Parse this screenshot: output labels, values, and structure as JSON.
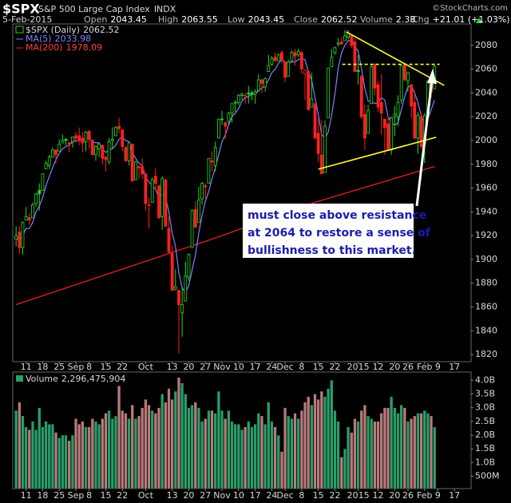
{
  "header": {
    "symbol": "$SPX",
    "description": "S&P 500 Large Cap Index",
    "exchange": "INDX",
    "credit": "©StockCharts.com",
    "date": "5-Feb-2015",
    "quote": [
      {
        "label": "Open",
        "value": "2043.45"
      },
      {
        "label": "High",
        "value": "2063.55"
      },
      {
        "label": "Low",
        "value": "2043.45"
      },
      {
        "label": "Close",
        "value": "2062.52"
      },
      {
        "label": "Volume",
        "value": "2.3B"
      },
      {
        "label": "Chg",
        "value": "+21.01 (+1.03%)"
      }
    ]
  },
  "chart_data": [
    {
      "type": "candlestick",
      "series": [
        {
          "name": "$SPX (Daily)",
          "up_color": "#22dd22",
          "down_color": "#ff2020",
          "open": [
            1917,
            1923,
            1910,
            1933,
            1935,
            1935,
            1947,
            1958,
            1958,
            1976,
            1979,
            1986,
            1992,
            1991,
            1998,
            2001,
            1998,
            1999,
            2004,
            2004,
            2002,
            1999,
            2008,
            2000,
            1988,
            1993,
            1996,
            1986,
            1982,
            2000,
            2004,
            2012,
            2009,
            1994,
            1983,
            1997,
            1967,
            1978,
            1978,
            1972,
            1946,
            1948,
            1970,
            1962,
            1936,
            1967,
            1926,
            1905,
            1875,
            1874,
            1855,
            1865,
            1885,
            1910,
            1942,
            1931,
            1951,
            1962,
            1964,
            1983,
            1979,
            2002,
            2018,
            2015,
            2016,
            2023,
            2032,
            2032,
            2038,
            2037,
            2040,
            2040,
            2039,
            2042,
            2051,
            2045,
            2058,
            2064,
            2070,
            2067,
            2074,
            2066,
            2054,
            2067,
            2074,
            2072,
            2074,
            2056,
            2058,
            2028,
            2031,
            2006,
            1988,
            1973,
            2019,
            2062,
            2074,
            2081,
            2083,
            2084,
            2087,
            2088,
            2083,
            2059,
            2054,
            2022,
            2006,
            2031,
            2064,
            2047,
            2032,
            2018,
            2014,
            1992,
            2020,
            2020,
            2034,
            2063,
            2050,
            2047,
            2032,
            2002,
            2020,
            1997,
            2022,
            2048,
            2043.45
          ],
          "high": [
            1928,
            1928,
            1932,
            1944,
            1939,
            1948,
            1956,
            1964,
            1972,
            1983,
            1988,
            1994,
            1993,
            2001,
            2005,
            2002,
            1999,
            2003,
            2007,
            2011,
            2007,
            2008,
            2008,
            2001,
            1996,
            1998,
            1996,
            1987,
            2002,
            2011,
            2012,
            2019,
            2009,
            1995,
            1999,
            1997,
            1983,
            1979,
            1985,
            1972,
            1952,
            1969,
            1977,
            1962,
            1970,
            1967,
            1936,
            1912,
            1892,
            1874,
            1876,
            1898,
            1905,
            1942,
            1949,
            1961,
            1965,
            1964,
            1985,
            1991,
            1999,
            2018,
            2025,
            2016,
            2024,
            2031,
            2034,
            2039,
            2040,
            2040,
            2046,
            2042,
            2043,
            2056,
            2052,
            2053,
            2072,
            2071,
            2074,
            2073,
            2076,
            2066,
            2068,
            2076,
            2077,
            2077,
            2075,
            2060,
            2058,
            2057,
            2031,
            2018,
            2017,
            2017,
            2061,
            2077,
            2079,
            2086,
            2087,
            2093,
            2093,
            2089,
            2086,
            2072,
            2055,
            2030,
            2030,
            2064,
            2065,
            2050,
            2056,
            2018,
            2021,
            2020,
            2029,
            2038,
            2064,
            2065,
            2058,
            2047,
            2042,
            2024,
            2023,
            2023,
            2050,
            2055,
            2063.55
          ],
          "low": [
            1911,
            1905,
            1904,
            1933,
            1929,
            1935,
            1944,
            1941,
            1958,
            1976,
            1976,
            1986,
            1981,
            1991,
            1998,
            1996,
            1990,
            1994,
            1998,
            1996,
            1990,
            1991,
            1993,
            1988,
            1983,
            1986,
            1980,
            1974,
            1980,
            1993,
            2004,
            2006,
            1991,
            1982,
            1979,
            1965,
            1967,
            1968,
            1968,
            1941,
            1926,
            1948,
            1958,
            1934,
            1925,
            1927,
            1906,
            1874,
            1874,
            1821,
            1835,
            1865,
            1882,
            1910,
            1927,
            1931,
            1946,
            1951,
            1964,
            1974,
            1974,
            2002,
            2013,
            2001,
            2014,
            2015,
            2024,
            2030,
            2034,
            2031,
            2031,
            2034,
            2031,
            2041,
            2040,
            2041,
            2058,
            2063,
            2067,
            2067,
            2065,
            2049,
            2054,
            2066,
            2063,
            2070,
            2056,
            2034,
            2025,
            2028,
            2002,
            1982,
            1972,
            1973,
            2019,
            2062,
            2072,
            2079,
            2081,
            2084,
            2085,
            2078,
            2058,
            2047,
            2018,
            1992,
            2006,
            2031,
            2038,
            2024,
            2005,
            1988,
            1992,
            1988,
            2004,
            2012,
            2031,
            2050,
            2041,
            2019,
            2001,
            1989,
            1993,
            1981,
            2022,
            2036,
            2043.45
          ],
          "close": [
            1920,
            1910,
            1931,
            1936,
            1933,
            1946,
            1955,
            1955,
            1972,
            1981,
            1986,
            1992,
            1988,
            1997,
            2000,
            2000,
            1997,
            2003,
            2002,
            2000,
            1998,
            2007,
            2001,
            1988,
            1995,
            1997,
            1985,
            1984,
            1999,
            2001,
            2011,
            2010,
            1995,
            1983,
            1998,
            1966,
            1982,
            1977,
            1972,
            1947,
            1946,
            1967,
            1964,
            1935,
            1968,
            1928,
            1906,
            1874,
            1877,
            1862,
            1862,
            1886,
            1904,
            1941,
            1927,
            1950,
            1964,
            1961,
            1985,
            1982,
            1994,
            2018,
            2018,
            2012,
            2023,
            2031,
            2032,
            2038,
            2039,
            2038,
            2039,
            2039,
            2041,
            2051,
            2048,
            2052,
            2063,
            2069,
            2067,
            2072,
            2067,
            2053,
            2066,
            2074,
            2071,
            2075,
            2060,
            2059,
            2026,
            2035,
            2002,
            1989,
            1972,
            2012,
            2061,
            2070,
            2078,
            2082,
            2081,
            2088,
            2090,
            2080,
            2058,
            2058,
            2020,
            2002,
            2025,
            2062,
            2044,
            2028,
            2023,
            2011,
            1992,
            2019,
            2022,
            2032,
            2063,
            2051,
            2057,
            2029,
            2002,
            2021,
            1995,
            2021,
            2050,
            2041,
            2062.52
          ]
        }
      ],
      "overlays": [
        {
          "name": "MA(5)",
          "color": "#8080ff",
          "values": [
            1918,
            1917,
            1920,
            1926,
            1926,
            1931,
            1940,
            1945,
            1952,
            1962,
            1970,
            1977,
            1984,
            1989,
            1993,
            1995,
            1996,
            1999,
            2000,
            2000,
            2000,
            2002,
            2002,
            1999,
            1998,
            1998,
            1993,
            1990,
            1992,
            1993,
            1996,
            2001,
            2003,
            2000,
            1999,
            1990,
            1985,
            1981,
            1979,
            1969,
            1965,
            1962,
            1959,
            1952,
            1956,
            1952,
            1940,
            1922,
            1911,
            1889,
            1876,
            1872,
            1878,
            1891,
            1904,
            1922,
            1937,
            1949,
            1957,
            1968,
            1977,
            1988,
            1999,
            2005,
            2013,
            2020,
            2023,
            2027,
            2033,
            2036,
            2037,
            2039,
            2039,
            2042,
            2044,
            2046,
            2051,
            2057,
            2060,
            2065,
            2068,
            2066,
            2065,
            2066,
            2066,
            2068,
            2069,
            2068,
            2058,
            2051,
            2036,
            2022,
            2005,
            2002,
            2007,
            2021,
            2039,
            2061,
            2074,
            2080,
            2084,
            2084,
            2079,
            2075,
            2061,
            2044,
            2033,
            2033,
            2031,
            2032,
            2036,
            2034,
            2020,
            2015,
            2013,
            2015,
            2026,
            2037,
            2045,
            2046,
            2040,
            2032,
            2021,
            2014,
            2018,
            2026,
            2033.98
          ]
        },
        {
          "name": "MA(200)",
          "color": "#ff2020",
          "x": [
            0,
            30,
            60,
            90,
            126
          ],
          "values": [
            1862,
            1890,
            1918,
            1948,
            1978.09
          ]
        }
      ],
      "trendlines": [
        {
          "color": "#ffff33",
          "dashed": false,
          "x": [
            99.4,
            128.9
          ],
          "values": [
            2091.4,
            2046.4
          ]
        },
        {
          "color": "#ffff33",
          "dashed": false,
          "x": [
            91,
            126.5
          ],
          "values": [
            1975.9,
            2002.7
          ]
        },
        {
          "color": "#ffff33",
          "dashed": true,
          "x": [
            98.2,
            127.5
          ],
          "values": [
            2064,
            2064
          ]
        }
      ],
      "annotations": [
        "must close above resistance",
        "at 2064 to restore a sense of",
        "bullishness to this market."
      ],
      "xlim": [
        -1,
        137
      ],
      "ylim": [
        1814,
        2098
      ],
      "yticks": [
        1820,
        1840,
        1860,
        1880,
        1900,
        1920,
        1940,
        1960,
        1980,
        2000,
        2020,
        2040,
        2060,
        2080
      ],
      "xticks": [
        {
          "value": 3,
          "label": "11"
        },
        {
          "value": 8,
          "label": "18"
        },
        {
          "value": 13,
          "label": "25"
        },
        {
          "value": 18,
          "label": "Sep"
        },
        {
          "value": 22,
          "label": "8"
        },
        {
          "value": 27,
          "label": "15"
        },
        {
          "value": 32,
          "label": "22"
        },
        {
          "value": 39,
          "label": "Oct"
        },
        {
          "value": 47,
          "label": "13"
        },
        {
          "value": 52,
          "label": "20"
        },
        {
          "value": 57,
          "label": "27"
        },
        {
          "value": 62,
          "label": "Nov"
        },
        {
          "value": 67,
          "label": "10"
        },
        {
          "value": 72,
          "label": "17"
        },
        {
          "value": 77,
          "label": "24"
        },
        {
          "value": 81,
          "label": "Dec"
        },
        {
          "value": 86,
          "label": "8"
        },
        {
          "value": 91,
          "label": "15"
        },
        {
          "value": 96,
          "label": "22"
        },
        {
          "value": 103,
          "label": "2015"
        },
        {
          "value": 109,
          "label": "12"
        },
        {
          "value": 114,
          "label": "20"
        },
        {
          "value": 118,
          "label": "26"
        },
        {
          "value": 123,
          "label": "Feb"
        },
        {
          "value": 127,
          "label": "9"
        },
        {
          "value": 132,
          "label": "17"
        }
      ],
      "grid": false
    },
    {
      "type": "bar",
      "name": "Volume",
      "last_value_label": "2,296,475,904",
      "up_color": "#2a9d6a",
      "down_color": "#b87a7a",
      "values": [
        2.9,
        3.2,
        2.7,
        2.3,
        2.2,
        2.5,
        2.2,
        3.0,
        2.3,
        2.5,
        2.4,
        2.4,
        2.1,
        1.9,
        2.0,
        2.0,
        1.8,
        2.0,
        2.6,
        2.4,
        2.5,
        2.3,
        2.3,
        2.6,
        2.5,
        2.4,
        2.6,
        2.8,
        2.9,
        2.6,
        2.7,
        3.8,
        2.9,
        2.8,
        2.6,
        3.1,
        2.6,
        2.7,
        3.0,
        3.3,
        3.1,
        2.9,
        2.8,
        3.0,
        3.5,
        3.2,
        3.7,
        3.3,
        3.6,
        4.1,
        3.9,
        3.5,
        3.0,
        3.1,
        3.2,
        3.0,
        2.5,
        2.6,
        2.9,
        2.9,
        2.8,
        3.6,
        2.9,
        2.6,
        2.9,
        2.5,
        2.4,
        2.4,
        2.2,
        2.3,
        2.5,
        2.3,
        2.4,
        2.8,
        2.7,
        2.4,
        3.2,
        2.5,
        2.3,
        2.0,
        1.4,
        3.0,
        2.7,
        2.6,
        2.8,
        2.6,
        2.9,
        3.2,
        3.4,
        3.1,
        3.5,
        3.3,
        3.6,
        3.4,
        3.7,
        4.0,
        2.9,
        2.5,
        1.2,
        1.5,
        2.3,
        2.1,
        2.6,
        2.5,
        2.9,
        3.1,
        2.7,
        2.6,
        2.5,
        2.5,
        2.8,
        3.0,
        3.0,
        3.4,
        3.0,
        2.8,
        3.1,
        3.0,
        2.5,
        2.6,
        2.7,
        2.8,
        2.8,
        2.9,
        2.8,
        2.7,
        2.296475904
      ],
      "xlim": [
        -1,
        137
      ],
      "ylim": [
        0.05,
        4.3
      ],
      "yticks": [
        {
          "value": 0.5,
          "label": "500M"
        },
        {
          "value": 1.0,
          "label": "1.0B"
        },
        {
          "value": 1.5,
          "label": "1.5B"
        },
        {
          "value": 2.0,
          "label": "2.0B"
        },
        {
          "value": 2.5,
          "label": "2.5B"
        },
        {
          "value": 3.0,
          "label": "3.0B"
        },
        {
          "value": 3.5,
          "label": "3.5B"
        },
        {
          "value": 4.0,
          "label": "4.0B"
        }
      ],
      "grid": false
    }
  ]
}
